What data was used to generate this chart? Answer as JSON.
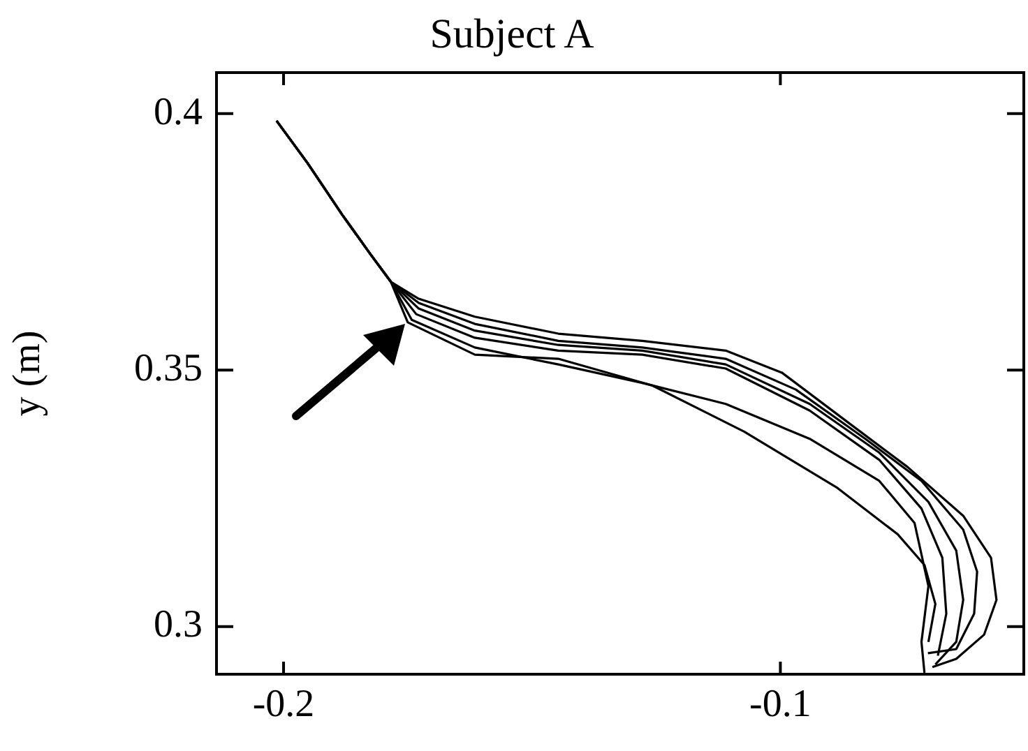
{
  "chart_data": {
    "type": "line",
    "title": "Subject A",
    "ylabel": "y (m)",
    "xlim": [
      -0.2135,
      -0.051
    ],
    "ylim": [
      0.2907,
      0.408
    ],
    "xticks": [
      -0.2,
      -0.1
    ],
    "yticks": [
      0.3,
      0.35,
      0.4
    ],
    "grid": false,
    "legend": false,
    "marker": "none",
    "line_style": "solid",
    "series": [
      {
        "color": "#000000",
        "x": [
          -0.2014,
          -0.1952,
          -0.1882,
          -0.1826,
          -0.1784,
          -0.1728,
          -0.1615,
          -0.1447,
          -0.1278,
          -0.111,
          -0.0997,
          -0.0857,
          -0.0744,
          -0.0632,
          -0.0576,
          -0.0565,
          -0.059,
          -0.0646,
          -0.0694
        ],
        "values": [
          0.3986,
          0.3904,
          0.3803,
          0.3727,
          0.3672,
          0.3639,
          0.3604,
          0.3571,
          0.3557,
          0.3538,
          0.3495,
          0.3393,
          0.3311,
          0.3216,
          0.3134,
          0.3052,
          0.2984,
          0.2937,
          0.2921
        ]
      },
      {
        "color": "#000000",
        "x": [
          -0.2014,
          -0.1952,
          -0.1882,
          -0.1826,
          -0.1784,
          -0.1728,
          -0.1615,
          -0.1447,
          -0.1278,
          -0.111,
          -0.0969,
          -0.0829,
          -0.0716,
          -0.0632,
          -0.0604,
          -0.061,
          -0.0646,
          -0.0703
        ],
        "values": [
          0.3986,
          0.3904,
          0.3803,
          0.3727,
          0.3672,
          0.3631,
          0.359,
          0.3557,
          0.3544,
          0.3522,
          0.3462,
          0.3366,
          0.3284,
          0.3189,
          0.3107,
          0.3025,
          0.2956,
          0.2948
        ]
      },
      {
        "color": "#000000",
        "x": [
          -0.2014,
          -0.1952,
          -0.1882,
          -0.1826,
          -0.1784,
          -0.1728,
          -0.1615,
          -0.1447,
          -0.1278,
          -0.111,
          -0.0941,
          -0.0801,
          -0.0702,
          -0.0646,
          -0.0632,
          -0.0646,
          -0.0688
        ],
        "values": [
          0.3986,
          0.3904,
          0.3803,
          0.3727,
          0.3672,
          0.362,
          0.3577,
          0.3549,
          0.3538,
          0.3511,
          0.3434,
          0.3339,
          0.3243,
          0.3148,
          0.3052,
          0.297,
          0.2926
        ]
      },
      {
        "color": "#000000",
        "x": [
          -0.2014,
          -0.1952,
          -0.1882,
          -0.1826,
          -0.1784,
          -0.1733,
          -0.1615,
          -0.1447,
          -0.1278,
          -0.111,
          -0.0941,
          -0.0801,
          -0.0716,
          -0.0674,
          -0.0666,
          -0.0683
        ],
        "values": [
          0.3986,
          0.3904,
          0.3803,
          0.3727,
          0.3672,
          0.3609,
          0.3563,
          0.3538,
          0.353,
          0.3503,
          0.3421,
          0.3325,
          0.323,
          0.3134,
          0.3025,
          0.2943
        ]
      },
      {
        "color": "#000000",
        "x": [
          -0.2014,
          -0.1952,
          -0.1882,
          -0.1826,
          -0.1784,
          -0.1742,
          -0.1615,
          -0.1447,
          -0.1278,
          -0.111,
          -0.0941,
          -0.0801,
          -0.073,
          -0.0702,
          -0.0716,
          -0.071
        ],
        "values": [
          0.3986,
          0.3904,
          0.3803,
          0.3727,
          0.3672,
          0.3598,
          0.3544,
          0.3511,
          0.3475,
          0.3434,
          0.3366,
          0.3284,
          0.3202,
          0.3079,
          0.297,
          0.291
        ]
      },
      {
        "color": "#000000",
        "x": [
          -0.2014,
          -0.1952,
          -0.1882,
          -0.1826,
          -0.1784,
          -0.175,
          -0.1615,
          -0.1447,
          -0.1258,
          -0.1073,
          -0.0885,
          -0.0764,
          -0.071,
          -0.0688,
          -0.0702
        ],
        "values": [
          0.3986,
          0.3904,
          0.3803,
          0.3727,
          0.3672,
          0.3593,
          0.353,
          0.3522,
          0.347,
          0.338,
          0.327,
          0.318,
          0.312,
          0.3044,
          0.297
        ]
      }
    ]
  }
}
